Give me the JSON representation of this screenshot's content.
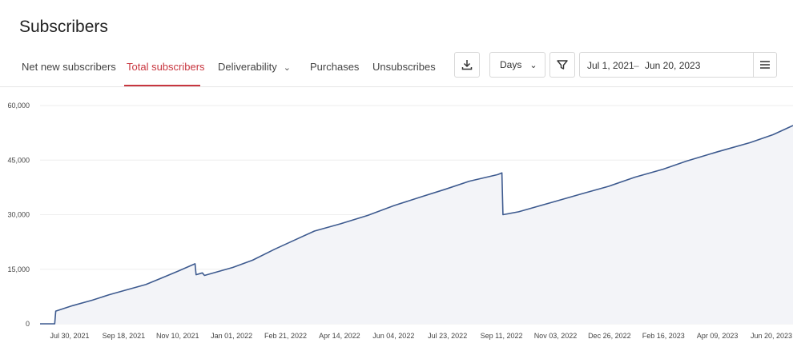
{
  "header": {
    "title": "Subscribers"
  },
  "tabs": [
    {
      "label": "Net new subscribers"
    },
    {
      "label": "Total subscribers"
    },
    {
      "label": "Deliverability"
    },
    {
      "label": "Purchases"
    },
    {
      "label": "Unsubscribes"
    }
  ],
  "toolbar": {
    "interval": "Days",
    "date_from": "Jul 1, 2021",
    "date_sep": "–",
    "date_to": "Jun 20, 2023",
    "icons": [
      "download-icon",
      "filter-icon",
      "menu-icon",
      "chevron-down-icon"
    ]
  },
  "colors": {
    "accent": "#c8363f",
    "line": "#3d5a8f",
    "area": "#f3f4f8",
    "grid": "#eeeeee"
  },
  "chart_data": {
    "type": "area",
    "title": "",
    "xlabel": "",
    "ylabel": "",
    "ylim": [
      0,
      60000
    ],
    "yticks": [
      "0",
      "15,000",
      "30,000",
      "45,000",
      "60,000"
    ],
    "ytick_values": [
      0,
      15000,
      30000,
      45000,
      60000
    ],
    "xticks": [
      "Jul 30, 2021",
      "Sep 18, 2021",
      "Nov 10, 2021",
      "Jan 01, 2022",
      "Feb 21, 2022",
      "Apr 14, 2022",
      "Jun 04, 2022",
      "Jul 23, 2022",
      "Sep 11, 2022",
      "Nov 03, 2022",
      "Dec 26, 2022",
      "Feb 16, 2023",
      "Apr 09, 2023",
      "Jun 20, 2023"
    ],
    "grid": true,
    "series": [
      {
        "x": [
          "2021-07-01",
          "2021-07-15",
          "2021-07-16",
          "2021-08-01",
          "2021-08-20",
          "2021-09-05",
          "2021-09-20",
          "2021-10-10",
          "2021-10-25",
          "2021-11-10",
          "2021-11-26",
          "2021-11-27",
          "2021-12-03",
          "2021-12-05",
          "2022-01-01",
          "2022-01-20",
          "2022-02-10",
          "2022-03-01",
          "2022-03-20",
          "2022-04-14",
          "2022-05-10",
          "2022-06-04",
          "2022-07-01",
          "2022-07-23",
          "2022-08-15",
          "2022-09-11",
          "2022-09-15",
          "2022-09-16",
          "2022-10-01",
          "2022-11-03",
          "2022-12-01",
          "2022-12-26",
          "2023-01-20",
          "2023-02-16",
          "2023-03-10",
          "2023-04-09",
          "2023-05-10",
          "2023-06-01",
          "2023-06-20"
        ],
        "values": [
          0,
          0,
          3500,
          5000,
          6500,
          8000,
          9200,
          10800,
          12600,
          14500,
          16500,
          13500,
          14000,
          13300,
          15500,
          17500,
          20500,
          23000,
          25500,
          27500,
          29800,
          32500,
          35000,
          37000,
          39200,
          41000,
          41500,
          30000,
          30800,
          33500,
          35800,
          37800,
          40300,
          42500,
          44700,
          47300,
          49800,
          52000,
          54500
        ]
      }
    ]
  }
}
